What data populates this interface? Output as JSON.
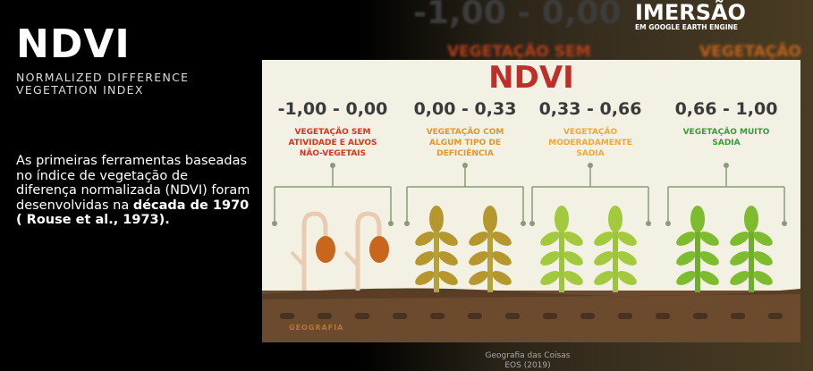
{
  "slide": {
    "title": "NDVI",
    "subtitle": "NORMALIZED DIFFERENCE VEGETATION INDEX",
    "body": {
      "text": "As primeiras ferramentas baseadas no índice de vegetação de diferença normalizada (NDVI) foram desenvolvidas na ",
      "bold": "década de 1970 ( Rouse et al., 1973)."
    }
  },
  "background": {
    "range": "-1,00 - 0,00",
    "label_left": "VEGETAÇÃO SEM",
    "label_right": "VEGETAÇÃO"
  },
  "logo": {
    "name": "IMERSÃO",
    "tagline": "EM GOOGLE EARTH ENGINE"
  },
  "infographic": {
    "title": "NDVI",
    "classes": [
      {
        "range": "-1,00 - 0,00",
        "label": "VEGETAÇÃO SEM ATIVIDADE E ALVOS NÃO-VEGETAIS"
      },
      {
        "range": "0,00 - 0,33",
        "label": "VEGETAÇÃO COM ALGUM TIPO DE DEFICIÊNCIA"
      },
      {
        "range": "0,33 - 0,66",
        "label": "VEGETAÇÃO MODERADAMENTE SADIA"
      },
      {
        "range": "0,66 - 1,00",
        "label": "VEGETAÇÃO MUITO SADIA"
      }
    ],
    "watermark": "GEOGRAFIA"
  },
  "caption": {
    "line1": "Geografia das Coisas",
    "line2": "EOS (2019)"
  }
}
